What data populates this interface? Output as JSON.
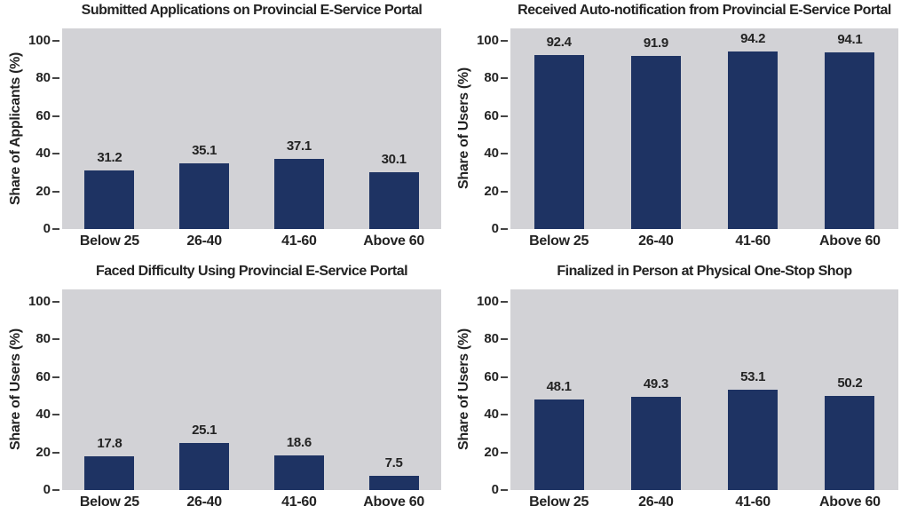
{
  "figure": {
    "background": "#ffffff",
    "text_color": "#232323",
    "bar_color": "#1e3363",
    "plot_bg": "#d2d2d6",
    "tick_color": "#454545"
  },
  "chart_data": [
    {
      "type": "bar",
      "title": "Submitted Applications on Provincial E-Service Portal",
      "ylabel": "Share of Applicants (%)",
      "xlabel": "",
      "categories": [
        "Below 25",
        "26-40",
        "41-60",
        "Above 60"
      ],
      "values": [
        31.2,
        35.1,
        37.1,
        30.1
      ],
      "ylim": [
        0,
        100
      ],
      "yticks": [
        0,
        20,
        40,
        60,
        80,
        100
      ],
      "grid": false,
      "legend": "none",
      "value_labels": true
    },
    {
      "type": "bar",
      "title": "Received Auto-notification from Provincial E-Service Portal",
      "ylabel": "Share of Users (%)",
      "xlabel": "",
      "categories": [
        "Below 25",
        "26-40",
        "41-60",
        "Above 60"
      ],
      "values": [
        92.4,
        91.9,
        94.2,
        94.1
      ],
      "ylim": [
        0,
        100
      ],
      "yticks": [
        0,
        20,
        40,
        60,
        80,
        100
      ],
      "grid": false,
      "legend": "none",
      "value_labels": true
    },
    {
      "type": "bar",
      "title": "Faced Difficulty Using Provincial E-Service Portal",
      "ylabel": "Share of Users (%)",
      "xlabel": "",
      "categories": [
        "Below 25",
        "26-40",
        "41-60",
        "Above 60"
      ],
      "values": [
        17.8,
        25.1,
        18.6,
        7.5
      ],
      "ylim": [
        0,
        100
      ],
      "yticks": [
        0,
        20,
        40,
        60,
        80,
        100
      ],
      "grid": false,
      "legend": "none",
      "value_labels": true
    },
    {
      "type": "bar",
      "title": "Finalized in Person at Physical One-Stop Shop",
      "ylabel": "Share of Users (%)",
      "xlabel": "",
      "categories": [
        "Below 25",
        "26-40",
        "41-60",
        "Above 60"
      ],
      "values": [
        48.1,
        49.3,
        53.1,
        50.2
      ],
      "ylim": [
        0,
        100
      ],
      "yticks": [
        0,
        20,
        40,
        60,
        80,
        100
      ],
      "grid": false,
      "legend": "none",
      "value_labels": true
    }
  ]
}
